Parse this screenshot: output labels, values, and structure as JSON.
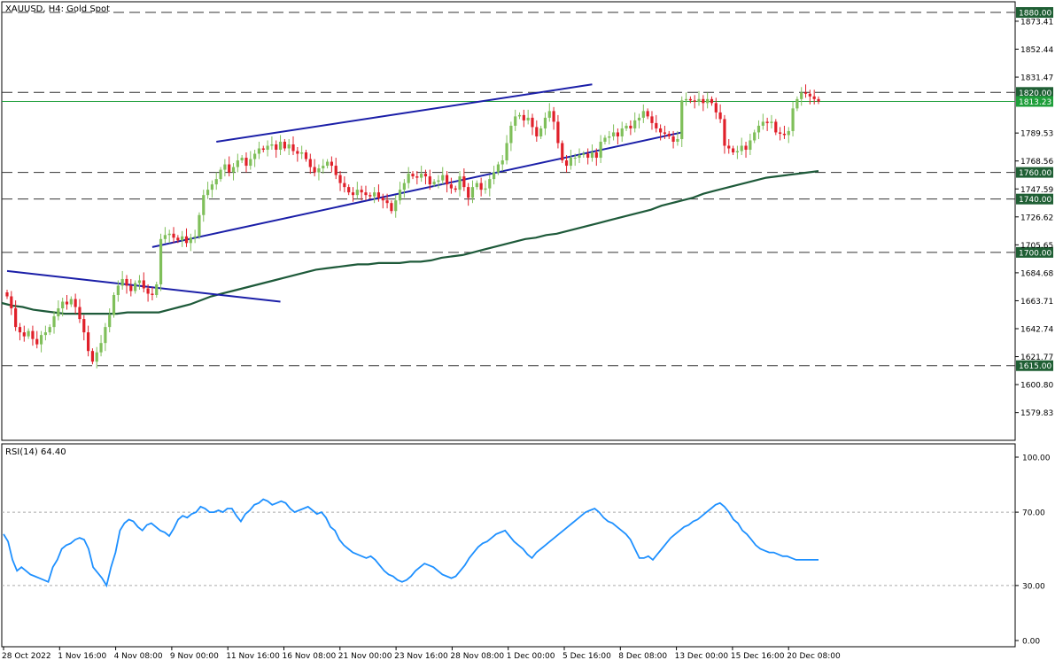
{
  "header": {
    "title": "XAUUSD, H4:  Gold Spot",
    "rsi_label": "RSI(14) 64.40"
  },
  "colors": {
    "bull": "#7fbf5a",
    "bear": "#e0202a",
    "trendline": "#1b1fa8",
    "ma": "#1e5a3a",
    "rsi": "#1e90ff",
    "price_line": "#1e9e3a",
    "level_badge": "#1f5f34"
  },
  "chart_data": [
    {
      "type": "candlestick",
      "title": "XAUUSD, H4:  Gold Spot",
      "ylim": [
        1559,
        1888
      ],
      "price_ticks": [
        "1873.41",
        "1852.44",
        "1831.47",
        "1789.53",
        "1768.56",
        "1747.59",
        "1726.62",
        "1705.65",
        "1684.68",
        "1663.71",
        "1642.74",
        "1621.77",
        "1600.80",
        "1579.83"
      ],
      "horizontal_levels": [
        {
          "value": 1880.0,
          "label": "1880.00"
        },
        {
          "value": 1820.0,
          "label": "1820.00"
        },
        {
          "value": 1760.0,
          "label": "1760.00"
        },
        {
          "value": 1740.0,
          "label": "1740.00"
        },
        {
          "value": 1700.0,
          "label": "1700.00"
        },
        {
          "value": 1615.0,
          "label": "1615.00"
        }
      ],
      "current_price": {
        "value": 1813.23,
        "label": "1813.23"
      },
      "x_labels": [
        "28 Oct 2022",
        "1 Nov 16:00",
        "4 Nov 08:00",
        "9 Nov 00:00",
        "11 Nov 16:00",
        "16 Nov 08:00",
        "21 Nov 00:00",
        "23 Nov 16:00",
        "28 Nov 08:00",
        "1 Dec 00:00",
        "5 Dec 16:00",
        "8 Dec 08:00",
        "13 Dec 00:00",
        "15 Dec 16:00",
        "20 Dec 08:00"
      ],
      "closes": [
        1667,
        1658,
        1644,
        1640,
        1637,
        1641,
        1635,
        1631,
        1638,
        1640,
        1644,
        1652,
        1658,
        1663,
        1661,
        1665,
        1659,
        1650,
        1640,
        1626,
        1618,
        1625,
        1632,
        1644,
        1653,
        1668,
        1675,
        1680,
        1675,
        1671,
        1677,
        1679,
        1673,
        1669,
        1668,
        1676,
        1710,
        1713,
        1714,
        1711,
        1709,
        1712,
        1707,
        1711,
        1712,
        1728,
        1743,
        1747,
        1751,
        1755,
        1762,
        1766,
        1760,
        1764,
        1769,
        1771,
        1765,
        1770,
        1774,
        1778,
        1777,
        1780,
        1781,
        1777,
        1783,
        1778,
        1781,
        1776,
        1774,
        1775,
        1770,
        1764,
        1760,
        1763,
        1765,
        1768,
        1765,
        1758,
        1752,
        1749,
        1745,
        1743,
        1747,
        1745,
        1743,
        1742,
        1745,
        1741,
        1739,
        1737,
        1731,
        1739,
        1747,
        1752,
        1759,
        1757,
        1756,
        1759,
        1757,
        1751,
        1753,
        1754,
        1758,
        1751,
        1748,
        1747,
        1757,
        1749,
        1741,
        1749,
        1752,
        1747,
        1748,
        1755,
        1760,
        1766,
        1769,
        1782,
        1795,
        1802,
        1803,
        1799,
        1801,
        1794,
        1787,
        1793,
        1801,
        1806,
        1798,
        1782,
        1769,
        1765,
        1771,
        1771,
        1773,
        1774,
        1771,
        1775,
        1771,
        1783,
        1786,
        1787,
        1790,
        1787,
        1793,
        1795,
        1793,
        1799,
        1801,
        1806,
        1802,
        1797,
        1793,
        1790,
        1789,
        1787,
        1783,
        1785,
        1814,
        1815,
        1814,
        1813,
        1815,
        1812,
        1815,
        1812,
        1805,
        1800,
        1780,
        1778,
        1775,
        1776,
        1780,
        1777,
        1784,
        1790,
        1795,
        1798,
        1797,
        1798,
        1790,
        1789,
        1788,
        1791,
        1808,
        1815,
        1820,
        1819,
        1817,
        1815,
        1813.23
      ],
      "sma": [
        1662,
        1660,
        1659,
        1657,
        1656,
        1655,
        1654,
        1654,
        1654,
        1654,
        1654,
        1654,
        1655,
        1655,
        1655,
        1655,
        1657,
        1659,
        1661,
        1664,
        1667,
        1669,
        1671,
        1673,
        1675,
        1677,
        1679,
        1681,
        1683,
        1685,
        1687,
        1688,
        1689,
        1690,
        1691,
        1691,
        1692,
        1692,
        1692,
        1693,
        1693,
        1694,
        1696,
        1697,
        1698,
        1700,
        1702,
        1704,
        1706,
        1708,
        1710,
        1711,
        1713,
        1714,
        1716,
        1718,
        1720,
        1722,
        1724,
        1726,
        1728,
        1730,
        1732,
        1735,
        1737,
        1739,
        1741,
        1744,
        1746,
        1748,
        1750,
        1752,
        1754,
        1756,
        1757,
        1758,
        1759,
        1760,
        1761
      ],
      "trendlines": [
        {
          "from": [
            0,
            1686
          ],
          "to": [
            64,
            1663
          ]
        },
        {
          "from": [
            49,
            1783
          ],
          "to": [
            137,
            1826
          ]
        },
        {
          "from": [
            34,
            1704
          ],
          "to": [
            158,
            1790
          ]
        }
      ]
    },
    {
      "type": "line",
      "title": "RSI(14) 64.40",
      "ylim": [
        0,
        100
      ],
      "y_ticks": [
        "100.00",
        "70.00",
        "30.00",
        "0.00"
      ],
      "levels": [
        70,
        30
      ],
      "values": [
        58,
        54,
        44,
        38,
        40,
        38,
        36,
        35,
        34,
        33,
        32,
        40,
        44,
        50,
        52,
        53,
        55,
        56,
        55,
        50,
        40,
        37,
        34,
        30,
        40,
        48,
        60,
        64,
        66,
        65,
        62,
        60,
        63,
        64,
        62,
        60,
        59,
        57,
        61,
        66,
        68,
        67,
        69,
        70,
        73,
        72,
        70,
        70,
        71,
        70,
        72,
        72,
        68,
        65,
        69,
        71,
        74,
        75,
        77,
        76,
        74,
        75,
        76,
        75,
        72,
        70,
        71,
        72,
        73,
        71,
        69,
        70,
        67,
        62,
        60,
        55,
        52,
        50,
        48,
        47,
        46,
        45,
        46,
        44,
        41,
        38,
        36,
        35,
        33,
        32,
        33,
        35,
        38,
        40,
        42,
        41,
        40,
        38,
        36,
        35,
        34,
        35,
        38,
        41,
        45,
        48,
        51,
        53,
        54,
        56,
        58,
        59,
        60,
        57,
        54,
        52,
        50,
        47,
        45,
        48,
        50,
        52,
        54,
        56,
        58,
        60,
        62,
        64,
        66,
        68,
        70,
        71,
        72,
        70,
        67,
        65,
        64,
        62,
        60,
        58,
        55,
        50,
        45,
        45,
        46,
        44,
        47,
        50,
        53,
        56,
        58,
        60,
        62,
        63,
        65,
        66,
        68,
        70,
        72,
        74,
        75,
        73,
        70,
        66,
        64,
        60,
        58,
        55,
        52,
        50,
        49,
        48,
        48,
        47,
        46,
        46,
        45,
        44,
        44,
        44,
        44,
        44,
        44
      ]
    }
  ]
}
